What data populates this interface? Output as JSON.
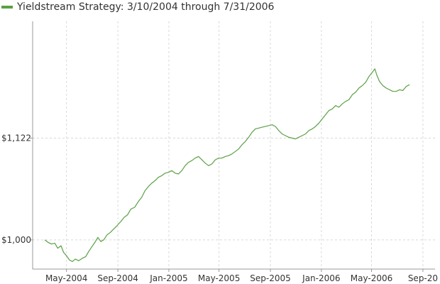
{
  "legend": {
    "label": "Yieldstream Strategy: 3/10/2004 through 7/31/2006",
    "color": "#5aa044"
  },
  "chart_data": {
    "type": "line",
    "title": "",
    "xlabel": "",
    "ylabel": "",
    "grid": true,
    "legend_position": "top-left",
    "x_range": [
      "2004-02-10",
      "2006-09-30"
    ],
    "y_range": [
      965,
      1262
    ],
    "y_ticks": [
      {
        "value": 1000,
        "label": "$1,000"
      },
      {
        "value": 1122,
        "label": "$1,122"
      }
    ],
    "x_ticks": [
      {
        "value": "2004-05-01",
        "label": "May-2004"
      },
      {
        "value": "2004-09-01",
        "label": "Sep-2004"
      },
      {
        "value": "2005-01-01",
        "label": "Jan-2005"
      },
      {
        "value": "2005-05-01",
        "label": "May-2005"
      },
      {
        "value": "2005-09-01",
        "label": "Sep-2005"
      },
      {
        "value": "2006-01-01",
        "label": "Jan-2006"
      },
      {
        "value": "2006-05-01",
        "label": "May-2006"
      },
      {
        "value": "2006-09-01",
        "label": "Sep-20"
      }
    ],
    "series": [
      {
        "name": "Yieldstream Strategy: 3/10/2004 through 7/31/2006",
        "color": "#5aa044",
        "points": [
          [
            "2004-03-10",
            1000
          ],
          [
            "2004-03-18",
            997
          ],
          [
            "2004-03-26",
            995
          ],
          [
            "2004-04-03",
            996
          ],
          [
            "2004-04-10",
            990
          ],
          [
            "2004-04-18",
            993
          ],
          [
            "2004-04-24",
            985
          ],
          [
            "2004-05-01",
            981
          ],
          [
            "2004-05-08",
            976
          ],
          [
            "2004-05-15",
            974
          ],
          [
            "2004-05-22",
            977
          ],
          [
            "2004-05-30",
            975
          ],
          [
            "2004-06-08",
            978
          ],
          [
            "2004-06-16",
            980
          ],
          [
            "2004-06-23",
            986
          ],
          [
            "2004-07-01",
            992
          ],
          [
            "2004-07-08",
            997
          ],
          [
            "2004-07-15",
            1003
          ],
          [
            "2004-07-22",
            998
          ],
          [
            "2004-07-29",
            1000
          ],
          [
            "2004-08-06",
            1006
          ],
          [
            "2004-08-14",
            1009
          ],
          [
            "2004-08-22",
            1013
          ],
          [
            "2004-08-30",
            1017
          ],
          [
            "2004-09-08",
            1022
          ],
          [
            "2004-09-16",
            1027
          ],
          [
            "2004-09-24",
            1030
          ],
          [
            "2004-10-02",
            1037
          ],
          [
            "2004-10-11",
            1039
          ],
          [
            "2004-10-20",
            1046
          ],
          [
            "2004-10-28",
            1051
          ],
          [
            "2004-11-05",
            1059
          ],
          [
            "2004-11-13",
            1064
          ],
          [
            "2004-11-21",
            1068
          ],
          [
            "2004-11-29",
            1071
          ],
          [
            "2004-12-07",
            1075
          ],
          [
            "2004-12-15",
            1077
          ],
          [
            "2004-12-23",
            1080
          ],
          [
            "2004-12-31",
            1081
          ],
          [
            "2005-01-08",
            1083
          ],
          [
            "2005-01-16",
            1080
          ],
          [
            "2005-01-24",
            1079
          ],
          [
            "2005-02-01",
            1083
          ],
          [
            "2005-02-09",
            1089
          ],
          [
            "2005-02-17",
            1093
          ],
          [
            "2005-02-25",
            1095
          ],
          [
            "2005-03-05",
            1098
          ],
          [
            "2005-03-13",
            1100
          ],
          [
            "2005-03-21",
            1096
          ],
          [
            "2005-03-29",
            1092
          ],
          [
            "2005-04-06",
            1089
          ],
          [
            "2005-04-14",
            1091
          ],
          [
            "2005-04-22",
            1096
          ],
          [
            "2005-04-30",
            1098
          ],
          [
            "2005-05-08",
            1098
          ],
          [
            "2005-05-16",
            1100
          ],
          [
            "2005-05-24",
            1101
          ],
          [
            "2005-06-01",
            1103
          ],
          [
            "2005-06-09",
            1106
          ],
          [
            "2005-06-17",
            1109
          ],
          [
            "2005-06-25",
            1114
          ],
          [
            "2005-07-03",
            1118
          ],
          [
            "2005-07-11",
            1123
          ],
          [
            "2005-07-19",
            1129
          ],
          [
            "2005-07-27",
            1133
          ],
          [
            "2005-08-04",
            1134
          ],
          [
            "2005-08-12",
            1135
          ],
          [
            "2005-08-20",
            1136
          ],
          [
            "2005-08-28",
            1137
          ],
          [
            "2005-09-05",
            1138
          ],
          [
            "2005-09-13",
            1136
          ],
          [
            "2005-09-21",
            1131
          ],
          [
            "2005-09-29",
            1127
          ],
          [
            "2005-10-07",
            1125
          ],
          [
            "2005-10-15",
            1123
          ],
          [
            "2005-10-23",
            1122
          ],
          [
            "2005-10-31",
            1121
          ],
          [
            "2005-11-08",
            1123
          ],
          [
            "2005-11-16",
            1125
          ],
          [
            "2005-11-24",
            1127
          ],
          [
            "2005-12-02",
            1131
          ],
          [
            "2005-12-10",
            1133
          ],
          [
            "2005-12-18",
            1136
          ],
          [
            "2005-12-26",
            1140
          ],
          [
            "2006-01-03",
            1145
          ],
          [
            "2006-01-11",
            1150
          ],
          [
            "2006-01-19",
            1155
          ],
          [
            "2006-01-27",
            1157
          ],
          [
            "2006-02-04",
            1161
          ],
          [
            "2006-02-12",
            1159
          ],
          [
            "2006-02-20",
            1163
          ],
          [
            "2006-02-28",
            1166
          ],
          [
            "2006-03-08",
            1168
          ],
          [
            "2006-03-16",
            1174
          ],
          [
            "2006-03-24",
            1177
          ],
          [
            "2006-04-01",
            1182
          ],
          [
            "2006-04-09",
            1185
          ],
          [
            "2006-04-17",
            1189
          ],
          [
            "2006-04-25",
            1196
          ],
          [
            "2006-05-03",
            1201
          ],
          [
            "2006-05-09",
            1205
          ],
          [
            "2006-05-14",
            1197
          ],
          [
            "2006-05-20",
            1190
          ],
          [
            "2006-05-28",
            1185
          ],
          [
            "2006-06-05",
            1182
          ],
          [
            "2006-06-13",
            1180
          ],
          [
            "2006-06-21",
            1178
          ],
          [
            "2006-06-29",
            1178
          ],
          [
            "2006-07-07",
            1180
          ],
          [
            "2006-07-15",
            1179
          ],
          [
            "2006-07-23",
            1184
          ],
          [
            "2006-07-31",
            1186
          ]
        ]
      }
    ]
  }
}
